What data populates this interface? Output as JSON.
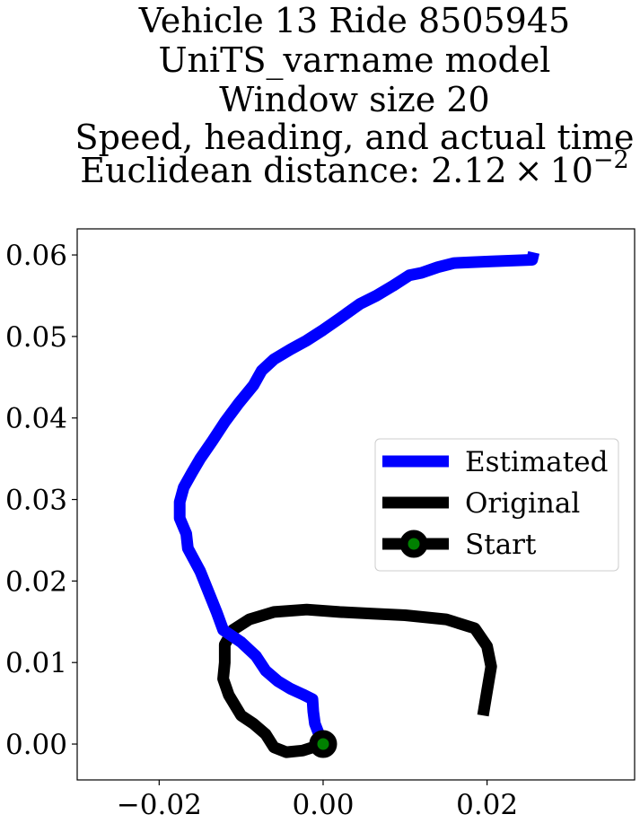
{
  "chart_data": {
    "type": "line",
    "title_lines": [
      "Vehicle 13 Ride 8505945",
      "UniTS_varname model",
      "Window size 20",
      "Speed, heading, and actual time"
    ],
    "distance_label": "Euclidean distance: 2.12",
    "distance_times": "×",
    "distance_base": "10",
    "distance_exp": "−2",
    "xlabel": "",
    "ylabel": "",
    "xlim": [
      -0.03,
      0.038
    ],
    "ylim": [
      -0.0044,
      0.0632
    ],
    "xticks": [
      -0.02,
      0.0,
      0.02
    ],
    "xtick_labels": [
      "−0.02",
      "0.00",
      "0.02"
    ],
    "yticks": [
      0.0,
      0.01,
      0.02,
      0.03,
      0.04,
      0.05,
      0.06
    ],
    "ytick_labels": [
      "0.00",
      "0.01",
      "0.02",
      "0.03",
      "0.04",
      "0.05",
      "0.06"
    ],
    "grid": false,
    "legend_position": "center-right",
    "series": [
      {
        "name": "Estimated",
        "color": "#0000ff",
        "points": [
          [
            0.0,
            0.0
          ],
          [
            -0.0005,
            0.0012
          ],
          [
            -0.001,
            0.0025
          ],
          [
            -0.0012,
            0.004
          ],
          [
            -0.0013,
            0.0055
          ],
          [
            -0.0025,
            0.0061
          ],
          [
            -0.004,
            0.0068
          ],
          [
            -0.0055,
            0.0077
          ],
          [
            -0.007,
            0.009
          ],
          [
            -0.0082,
            0.0108
          ],
          [
            -0.01,
            0.0125
          ],
          [
            -0.0122,
            0.014
          ],
          [
            -0.013,
            0.0162
          ],
          [
            -0.015,
            0.0212
          ],
          [
            -0.0165,
            0.024
          ],
          [
            -0.0167,
            0.0258
          ],
          [
            -0.0175,
            0.0277
          ],
          [
            -0.0175,
            0.0297
          ],
          [
            -0.017,
            0.0315
          ],
          [
            -0.016,
            0.0333
          ],
          [
            -0.015,
            0.035
          ],
          [
            -0.0135,
            0.0372
          ],
          [
            -0.012,
            0.0395
          ],
          [
            -0.0103,
            0.0418
          ],
          [
            -0.0085,
            0.044
          ],
          [
            -0.0075,
            0.0458
          ],
          [
            -0.006,
            0.0472
          ],
          [
            -0.004,
            0.0484
          ],
          [
            -0.002,
            0.0495
          ],
          [
            0.0,
            0.0508
          ],
          [
            0.002,
            0.0522
          ],
          [
            0.0045,
            0.054
          ],
          [
            0.0065,
            0.055
          ],
          [
            0.0085,
            0.0562
          ],
          [
            0.0105,
            0.0575
          ],
          [
            0.012,
            0.0578
          ],
          [
            0.014,
            0.0585
          ],
          [
            0.016,
            0.059
          ],
          [
            0.018,
            0.0591
          ],
          [
            0.0205,
            0.0592
          ],
          [
            0.023,
            0.0593
          ],
          [
            0.0255,
            0.0594
          ],
          [
            0.0257,
            0.0603
          ]
        ]
      },
      {
        "name": "Original",
        "color": "#000000",
        "points": [
          [
            0.0,
            0.0
          ],
          [
            -0.0025,
            -0.0008
          ],
          [
            -0.0045,
            -0.001
          ],
          [
            -0.006,
            -0.0004
          ],
          [
            -0.007,
            0.0012
          ],
          [
            -0.0085,
            0.0025
          ],
          [
            -0.01,
            0.0035
          ],
          [
            -0.0115,
            0.006
          ],
          [
            -0.0122,
            0.008
          ],
          [
            -0.012,
            0.01
          ],
          [
            -0.012,
            0.0122
          ],
          [
            -0.011,
            0.014
          ],
          [
            -0.009,
            0.0153
          ],
          [
            -0.006,
            0.0162
          ],
          [
            -0.002,
            0.0165
          ],
          [
            0.002,
            0.0162
          ],
          [
            0.006,
            0.016
          ],
          [
            0.01,
            0.0158
          ],
          [
            0.015,
            0.0153
          ],
          [
            0.0185,
            0.0142
          ],
          [
            0.02,
            0.012
          ],
          [
            0.0205,
            0.0095
          ],
          [
            0.02,
            0.0065
          ],
          [
            0.0195,
            0.0035
          ]
        ]
      }
    ],
    "start": {
      "name": "Start",
      "x": 0.0,
      "y": 0.0,
      "marker_color": "#008000",
      "edge_color": "#000000"
    }
  }
}
